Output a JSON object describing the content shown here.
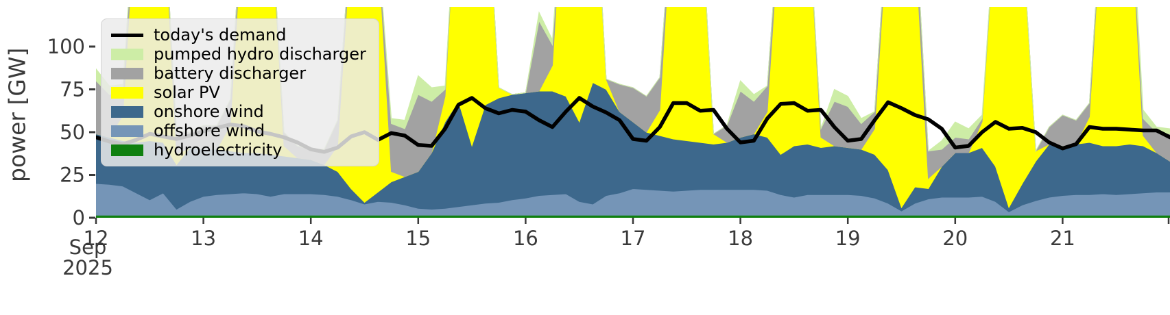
{
  "page": {
    "background": "#ffffff"
  },
  "axes": {
    "tick_color": "#3a3a3a",
    "label_color": "#3a3a3a"
  },
  "legend": {
    "items": [
      {
        "key": "todays_demand",
        "label": "today's demand",
        "color": "#000000",
        "type": "line"
      },
      {
        "key": "pumped_hydro_discharger",
        "label": "pumped hydro discharger",
        "color": "#cdeda6",
        "type": "patch"
      },
      {
        "key": "battery_discharger",
        "label": "battery discharger",
        "color": "#a2a2a2",
        "type": "patch"
      },
      {
        "key": "solar_pv",
        "label": "solar PV",
        "color": "#ffff00",
        "type": "patch"
      },
      {
        "key": "onshore_wind",
        "label": "onshore wind",
        "color": "#3d688c",
        "type": "patch"
      },
      {
        "key": "offshore_wind",
        "label": "offshore wind",
        "color": "#7595b7",
        "type": "patch"
      },
      {
        "key": "hydroelectricity",
        "label": "hydroelectricity",
        "color": "#0f800f",
        "type": "patch"
      }
    ]
  },
  "chart_data": {
    "type": "area",
    "title": "",
    "ylabel": "power [GW]",
    "xlabel_month": "Sep",
    "xlabel_year": "2025",
    "grid": false,
    "legend_position": "upper left",
    "x_start_day": 12,
    "x_step_days": 0.125,
    "x_ticks": [
      {
        "day": 12,
        "label": "12"
      },
      {
        "day": 13,
        "label": "13"
      },
      {
        "day": 14,
        "label": "14"
      },
      {
        "day": 15,
        "label": "15"
      },
      {
        "day": 16,
        "label": "16"
      },
      {
        "day": 17,
        "label": "17"
      },
      {
        "day": 18,
        "label": "18"
      },
      {
        "day": 19,
        "label": "19"
      },
      {
        "day": 20,
        "label": "20"
      },
      {
        "day": 21,
        "label": "21"
      },
      {
        "day": 22,
        "label": ""
      }
    ],
    "y_ticks": [
      0,
      25,
      50,
      75,
      100
    ],
    "ylim_display": [
      0,
      123
    ],
    "stack_order": [
      "hydroelectricity",
      "offshore_wind",
      "onshore_wind",
      "solar_pv",
      "battery_discharger",
      "pumped_hydro_discharger"
    ],
    "series": {
      "hydroelectricity": {
        "label": "hydroelectricity",
        "color": "#0f800f",
        "values": [
          1.5,
          1.5,
          1.5,
          1.5,
          1.5,
          1.5,
          1.5,
          1.5,
          1.5,
          1.5,
          1.5,
          1.5,
          1.5,
          1.5,
          1.5,
          1.5,
          1.5,
          1.5,
          1.5,
          1.5,
          1.5,
          1.5,
          1.5,
          1.5,
          1.5,
          1.5,
          1.5,
          1.5,
          1.5,
          1.5,
          1.5,
          1.5,
          1.5,
          1.5,
          1.5,
          1.5,
          1.5,
          1.5,
          1.5,
          1.5,
          1.5,
          1.5,
          1.5,
          1.5,
          1.5,
          1.5,
          1.5,
          1.5,
          1.5,
          1.5,
          1.5,
          1.5,
          1.5,
          1.5,
          1.5,
          1.5,
          1.5,
          1.5,
          1.5,
          1.5,
          1.5,
          1.5,
          1.5,
          1.5,
          1.5,
          1.5,
          1.5,
          1.5,
          1.5,
          1.5,
          1.5,
          1.5,
          1.5,
          1.5,
          1.5,
          1.5,
          1.5,
          1.5,
          1.5,
          1.5,
          1.5
        ]
      },
      "offshore_wind": {
        "label": "offshore wind",
        "color": "#7595b7",
        "values": [
          18.5,
          18,
          17,
          13,
          9,
          13,
          3.5,
          8,
          11,
          12,
          12.5,
          13,
          12.5,
          11,
          12.5,
          12.5,
          12.5,
          12,
          11,
          9,
          6.5,
          8,
          7.5,
          6,
          4,
          3.5,
          4,
          5,
          6,
          7,
          7.5,
          9,
          10,
          11.5,
          12,
          12.5,
          8,
          6.5,
          11.5,
          13,
          15.5,
          15,
          14.5,
          14,
          14.5,
          15,
          15,
          15,
          15,
          15,
          14.5,
          12,
          10.5,
          12,
          12,
          12,
          12,
          11.5,
          10,
          7,
          2.5,
          7,
          9.5,
          10.5,
          10.5,
          10.5,
          11,
          8,
          2,
          6,
          8.5,
          10.5,
          11.5,
          12,
          12,
          12.5,
          12,
          12.5,
          13,
          13.5,
          13.5
        ]
      },
      "onshore_wind": {
        "label": "onshore wind",
        "color": "#3d688c",
        "values": [
          29,
          27.5,
          26.5,
          29.5,
          34.5,
          29.5,
          26,
          31.5,
          27.5,
          26.5,
          25,
          23.5,
          24,
          24.5,
          22,
          21,
          20,
          17.5,
          14.5,
          6.5,
          1,
          5.5,
          12,
          16.5,
          21.5,
          33,
          50.5,
          61.5,
          34.5,
          57.5,
          61,
          61.5,
          61.5,
          61,
          60.5,
          57,
          46.5,
          71,
          62,
          47.5,
          39,
          33.5,
          32,
          30.5,
          29,
          27.5,
          26.5,
          27.5,
          30.5,
          32.5,
          31,
          23.5,
          30,
          29.5,
          27.5,
          28.5,
          27.5,
          27,
          25.5,
          19.5,
          2,
          9.5,
          6,
          18,
          26,
          26,
          28.5,
          20.5,
          2.5,
          12.5,
          23,
          31,
          29,
          29.5,
          30.5,
          28,
          28.5,
          29,
          27.5,
          23,
          18
        ]
      },
      "solar_pv": {
        "label": "solar PV",
        "color": "#ffff00",
        "values": [
          0,
          0,
          15,
          145,
          152,
          145,
          6,
          0,
          0,
          0,
          15,
          145,
          152,
          145,
          6,
          0,
          0,
          0,
          15,
          145,
          152,
          145,
          6,
          0,
          0,
          0,
          15,
          145,
          152,
          145,
          6,
          0,
          0,
          0,
          15,
          145,
          152,
          145,
          6,
          0,
          0,
          0,
          15,
          145,
          152,
          145,
          6,
          0,
          0,
          0,
          15,
          145,
          152,
          145,
          6,
          0,
          0,
          0,
          15,
          145,
          152,
          145,
          6,
          0,
          0,
          0,
          15,
          145,
          152,
          145,
          6,
          0,
          0,
          0,
          15,
          145,
          152,
          145,
          6,
          0,
          0
        ]
      },
      "battery_discharger": {
        "label": "battery discharger",
        "color": "#a2a2a2",
        "values": [
          31,
          25,
          15,
          6,
          0,
          0,
          14,
          9,
          14,
          14,
          15,
          5,
          0,
          0,
          8,
          7,
          6,
          9,
          15,
          5,
          0,
          0,
          28,
          28,
          45,
          30,
          4,
          0,
          0,
          0,
          0,
          0,
          0,
          41,
          12,
          0,
          0,
          0,
          0,
          16,
          20,
          21,
          19,
          0,
          0,
          0,
          0,
          10,
          27,
          19,
          15,
          5,
          0,
          0,
          5,
          26,
          24,
          15,
          10,
          8,
          0,
          15,
          16,
          10,
          9,
          8,
          2,
          2,
          0,
          0,
          0,
          10,
          18,
          14,
          8,
          2,
          0,
          9,
          10,
          12,
          16
        ]
      },
      "pumped_hydro_discharger": {
        "label": "pumped hydro discharger",
        "color": "#cdeda6",
        "values": [
          7,
          5,
          3,
          0,
          0,
          0,
          0,
          0,
          0,
          0,
          0,
          0,
          0,
          0,
          0,
          0,
          0,
          0,
          0,
          0,
          0,
          0,
          3,
          5,
          11,
          8,
          2,
          0,
          0,
          0,
          0,
          0,
          0,
          5,
          3,
          0,
          0,
          0,
          0,
          0,
          0,
          0,
          0,
          0,
          0,
          0,
          0,
          0,
          6,
          4,
          0,
          0,
          0,
          0,
          0,
          7,
          6,
          3,
          0,
          0,
          0,
          0,
          0,
          5,
          9,
          6,
          2,
          0,
          0,
          0,
          0,
          0,
          0,
          0,
          0,
          0,
          4,
          6,
          5,
          3,
          3
        ]
      },
      "todays_demand": {
        "label": "today's demand",
        "color": "#000000",
        "type": "line",
        "values": [
          47,
          44.5,
          43,
          45.5,
          49,
          47.5,
          46,
          48,
          50.5,
          52.5,
          54.5,
          53.5,
          50.5,
          49,
          47,
          44,
          40,
          38.5,
          41,
          47.5,
          50,
          45.5,
          49.5,
          48,
          42.5,
          42,
          52,
          66,
          70,
          64,
          61,
          63,
          62,
          57,
          53,
          62,
          70,
          65,
          61.5,
          57,
          46,
          45,
          53,
          67,
          67,
          62.5,
          63,
          52,
          44,
          45,
          58,
          66.5,
          67,
          62.5,
          63,
          53,
          45,
          46,
          57,
          67.5,
          64,
          60,
          57.5,
          52,
          41,
          42,
          50,
          56,
          52,
          52.5,
          50,
          44,
          40.5,
          43,
          53,
          52,
          52,
          51.5,
          51,
          51,
          47
        ]
      }
    }
  }
}
